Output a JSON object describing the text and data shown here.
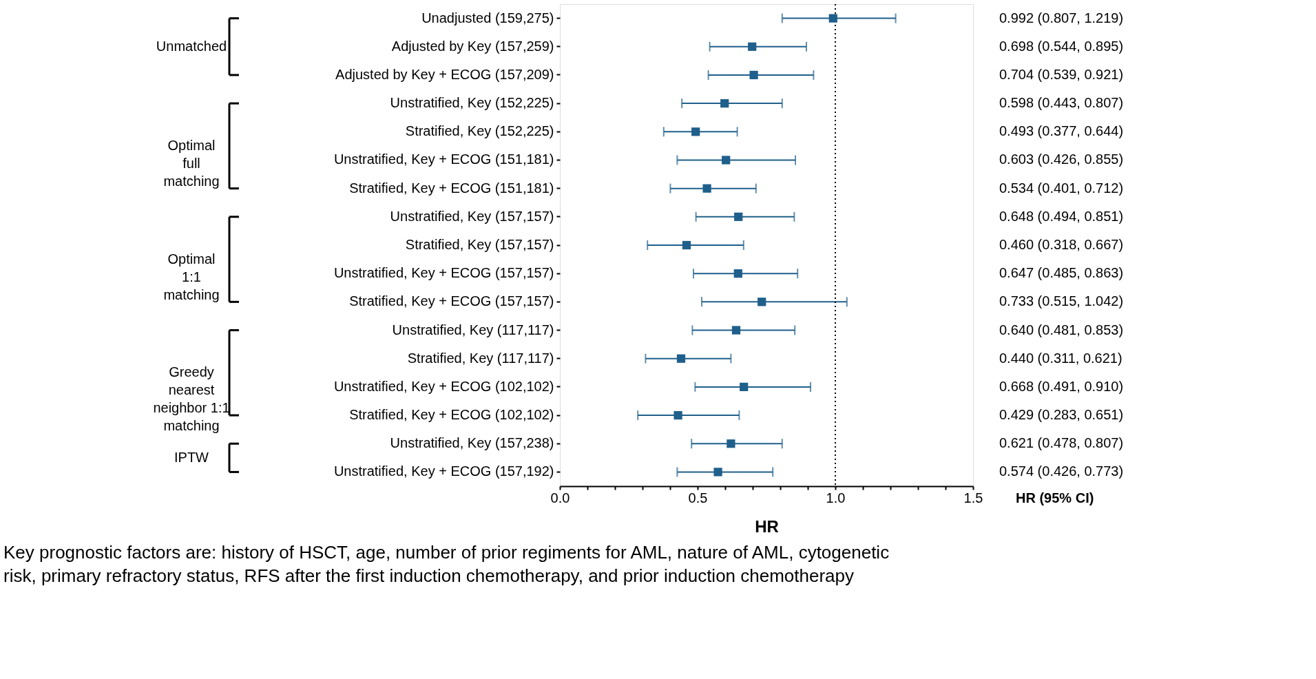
{
  "chart_data": {
    "type": "scatter",
    "orientation": "horizontal",
    "marker": "square",
    "xlabel": "HR",
    "categories": [
      "Unadjusted (159,275)",
      "Adjusted by Key (157,259)",
      "Adjusted by Key + ECOG (157,209)",
      "Unstratified, Key (152,225)",
      "Stratified, Key (152,225)",
      "Unstratified, Key + ECOG (151,181)",
      "Stratified, Key + ECOG (151,181)",
      "Unstratified, Key (157,157)",
      "Stratified, Key (157,157)",
      "Unstratified, Key + ECOG (157,157)",
      "Stratified, Key + ECOG (157,157)",
      "Unstratified, Key (117,117)",
      "Stratified, Key (117,117)",
      "Unstratified, Key + ECOG (102,102)",
      "Stratified, Key + ECOG (102,102)",
      "Unstratified, Key (157,238)",
      "Unstratified, Key + ECOG (157,192)"
    ],
    "series": [
      {
        "color": "#1f5f8b",
        "values": [
          0.992,
          0.698,
          0.704,
          0.598,
          0.493,
          0.603,
          0.534,
          0.648,
          0.46,
          0.647,
          0.733,
          0.64,
          0.44,
          0.668,
          0.429,
          0.621,
          0.574
        ],
        "errors": [
          [
            0.807,
            1.219
          ],
          [
            0.544,
            0.895
          ],
          [
            0.539,
            0.921
          ],
          [
            0.443,
            0.807
          ],
          [
            0.377,
            0.644
          ],
          [
            0.426,
            0.855
          ],
          [
            0.401,
            0.712
          ],
          [
            0.494,
            0.851
          ],
          [
            0.318,
            0.667
          ],
          [
            0.485,
            0.863
          ],
          [
            0.515,
            1.042
          ],
          [
            0.481,
            0.853
          ],
          [
            0.311,
            0.621
          ],
          [
            0.491,
            0.91
          ],
          [
            0.283,
            0.651
          ],
          [
            0.478,
            0.807
          ],
          [
            0.426,
            0.773
          ]
        ],
        "value_labels": [
          "0.992 (0.807, 1.219)",
          "0.698 (0.544, 0.895)",
          "0.704 (0.539, 0.921)",
          "0.598 (0.443, 0.807)",
          "0.493 (0.377, 0.644)",
          "0.603 (0.426, 0.855)",
          "0.534 (0.401, 0.712)",
          "0.648 (0.494, 0.851)",
          "0.460 (0.318, 0.667)",
          "0.647 (0.485, 0.863)",
          "0.733 (0.515, 1.042)",
          "0.640 (0.481, 0.853)",
          "0.440 (0.311, 0.621)",
          "0.668 (0.491, 0.910)",
          "0.429 (0.283, 0.651)",
          "0.621 (0.478, 0.807)",
          "0.574 (0.426, 0.773)"
        ]
      }
    ],
    "xlim": [
      0,
      1.5
    ],
    "xticks": [
      {
        "value": 0,
        "label": "0.0"
      },
      {
        "value": 0.1,
        "label": null
      },
      {
        "value": 0.2,
        "label": null
      },
      {
        "value": 0.3,
        "label": null
      },
      {
        "value": 0.4,
        "label": null
      },
      {
        "value": 0.5,
        "label": "0.5"
      },
      {
        "value": 0.6,
        "label": null
      },
      {
        "value": 0.7,
        "label": null
      },
      {
        "value": 0.8,
        "label": null
      },
      {
        "value": 0.9,
        "label": null
      },
      {
        "value": 1.0,
        "label": "1.0"
      },
      {
        "value": 1.1,
        "label": null
      },
      {
        "value": 1.2,
        "label": null
      },
      {
        "value": 1.3,
        "label": null
      },
      {
        "value": 1.4,
        "label": null
      },
      {
        "value": 1.5,
        "label": "1.5"
      }
    ],
    "ref_lines": [
      {
        "axis": "x",
        "value": 1.0,
        "line_style": "dotted"
      }
    ],
    "annotations": [
      "Unmatched",
      "Optimal\nfull\nmatching",
      "Optimal\n1:1\nmatching",
      "Greedy\nnearest\nneighbor 1:1\nmatching",
      "IPTW",
      "HR (95% CI)",
      "Key prognostic factors are: history of HSCT, age, number of prior regiments for AML, nature of AML, cytogenetic\nrisk, primary refractory status, RFS after the first induction chemotherapy, and prior induction chemotherapy"
    ]
  }
}
